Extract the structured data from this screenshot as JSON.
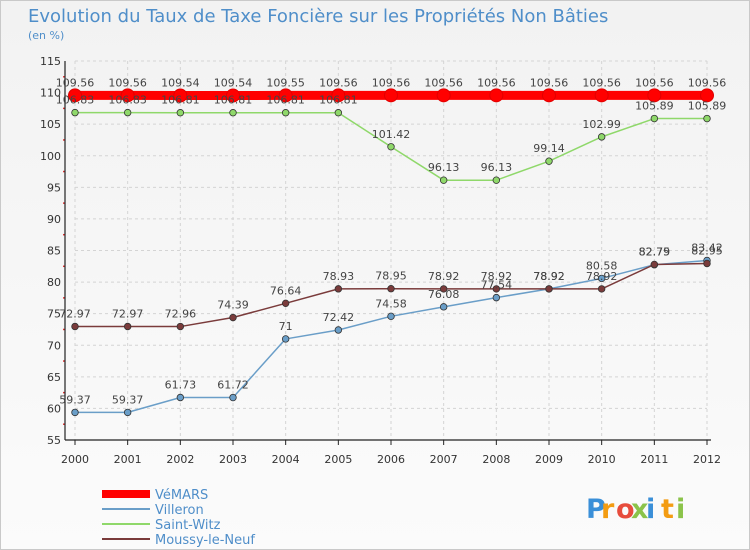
{
  "chart_data": {
    "type": "line",
    "title": "Evolution du Taux de Taxe Foncière sur les Propriétés Non Bâties",
    "subtitle": "(en %)",
    "xlabel": "",
    "ylabel": "",
    "ylim": [
      55,
      115
    ],
    "y_ticks": [
      "55",
      "60",
      "65",
      "70",
      "75",
      "80",
      "85",
      "90",
      "95",
      "100",
      "105",
      "110",
      "115"
    ],
    "categories": [
      "2000",
      "2001",
      "2002",
      "2003",
      "2004",
      "2005",
      "2006",
      "2007",
      "2008",
      "2009",
      "2010",
      "2011",
      "2012"
    ],
    "series": [
      {
        "name": "VéMARS",
        "color": "#ff0000",
        "values": [
          109.56,
          109.56,
          109.54,
          109.54,
          109.55,
          109.56,
          109.56,
          109.56,
          109.56,
          109.56,
          109.56,
          109.56,
          109.56
        ],
        "labels": [
          "109.56",
          "109.56",
          "109.54",
          "109.54",
          "109.55",
          "109.56",
          "109.56",
          "109.56",
          "109.56",
          "109.56",
          "109.56",
          "109.56",
          "109.56"
        ]
      },
      {
        "name": "Villeron",
        "color": "#6a9ec8",
        "values": [
          59.37,
          59.37,
          61.73,
          61.72,
          71,
          72.42,
          74.58,
          76.08,
          77.54,
          78.92,
          80.58,
          82.75,
          83.42
        ],
        "labels": [
          "59.37",
          "59.37",
          "61.73",
          "61.72",
          "71",
          "72.42",
          "74.58",
          "76.08",
          "77.54",
          "78.92",
          "80.58",
          "82.75",
          "83.42"
        ]
      },
      {
        "name": "Saint-Witz",
        "color": "#8fd86a",
        "values": [
          106.83,
          106.83,
          106.81,
          106.81,
          106.81,
          106.81,
          101.42,
          96.13,
          96.13,
          99.14,
          102.99,
          105.89,
          105.89
        ],
        "labels": [
          "106.83",
          "106.83",
          "106.81",
          "106.81",
          "106.81",
          "106.81",
          "101.42",
          "96.13",
          "96.13",
          "99.14",
          "102.99",
          "105.89",
          "105.89"
        ]
      },
      {
        "name": "Moussy-le-Neuf",
        "color": "#7a3b3b",
        "values": [
          72.97,
          72.97,
          72.96,
          74.39,
          76.64,
          78.93,
          78.95,
          78.92,
          78.92,
          78.92,
          78.92,
          82.79,
          82.95
        ],
        "labels": [
          "72.97",
          "72.97",
          "72.96",
          "74.39",
          "76.64",
          "78.93",
          "78.95",
          "78.92",
          "78.92",
          "78.92",
          "78.92",
          "82.79",
          "82.95"
        ]
      }
    ],
    "legend": {
      "placement": "bottom-left"
    }
  },
  "logo": {
    "letters": [
      "P",
      "r",
      "o",
      "x",
      "i",
      "t",
      "i"
    ],
    "colors": [
      "#3a8fd8",
      "#f39c12",
      "#e74c3c",
      "#8bc34a",
      "#3a8fd8",
      "#f39c12",
      "#8bc34a"
    ]
  }
}
